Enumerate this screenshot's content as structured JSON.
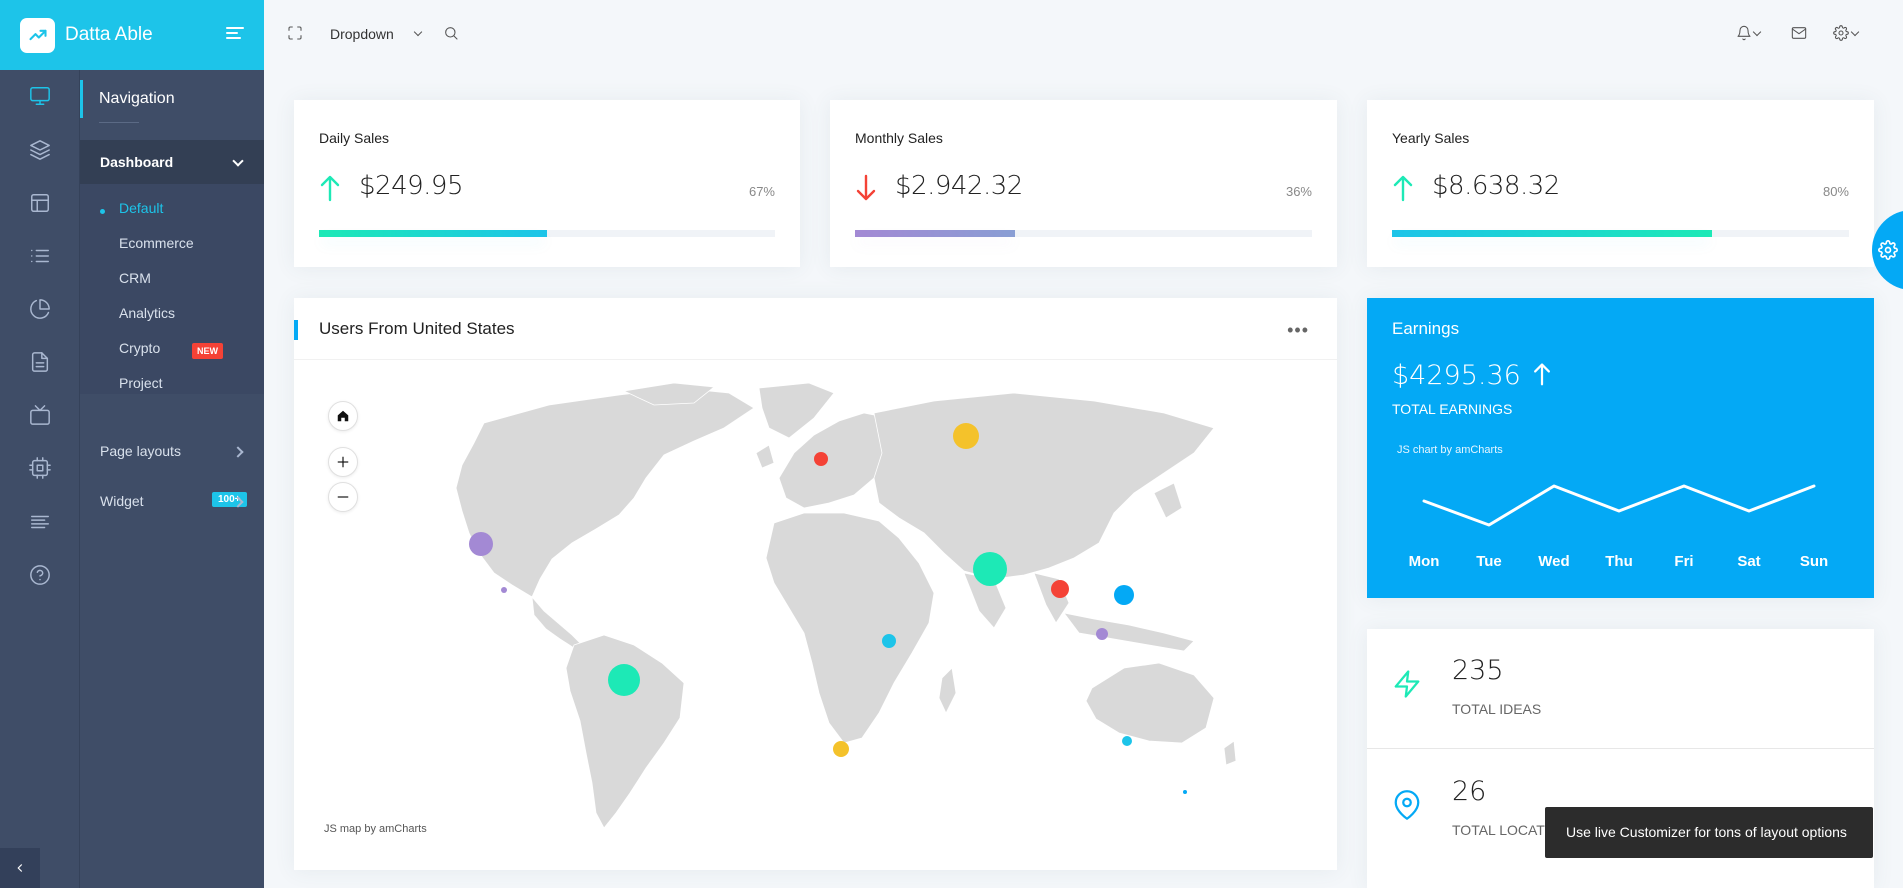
{
  "brand": {
    "name": "Datta Able"
  },
  "sidebar": {
    "heading": "Navigation",
    "group": "Dashboard",
    "sub_items": [
      {
        "label": "Default"
      },
      {
        "label": "Ecommerce"
      },
      {
        "label": "CRM"
      },
      {
        "label": "Analytics"
      },
      {
        "label": "Crypto",
        "badge": "NEW"
      },
      {
        "label": "Project"
      }
    ],
    "page_layouts": "Page layouts",
    "widget": {
      "label": "Widget",
      "badge": "100+"
    },
    "rail_icons": [
      "monitor-icon",
      "layers-icon",
      "layout-icon",
      "list-icon",
      "pie-chart-icon",
      "file-text-icon",
      "tv-icon",
      "cpu-icon",
      "align-left-icon",
      "help-circle-icon"
    ]
  },
  "topbar": {
    "dropdown_label": "Dropdown"
  },
  "stats": [
    {
      "title": "Daily Sales",
      "value": "$249.95",
      "percent": "67%",
      "trend": "up",
      "progress": 0.5
    },
    {
      "title": "Monthly Sales",
      "value": "$2.942.32",
      "percent": "36%",
      "trend": "down",
      "progress": 0.35
    },
    {
      "title": "Yearly Sales",
      "value": "$8.638.32",
      "percent": "80%",
      "trend": "up",
      "progress": 0.7
    }
  ],
  "map_card": {
    "title": "Users From United States",
    "credit": "JS map by amCharts"
  },
  "earnings": {
    "title": "Earnings",
    "value": "$4295.36",
    "subtitle": "TOTAL EARNINGS",
    "credit": "JS chart by amCharts",
    "days": [
      "Mon",
      "Tue",
      "Wed",
      "Thu",
      "Fri",
      "Sat",
      "Sun"
    ]
  },
  "ideas": {
    "value": "235",
    "label": "TOTAL IDEAS"
  },
  "locations": {
    "value": "26",
    "label": "TOTAL LOCATIONS"
  },
  "toast": {
    "text": "Use live Customizer for tons of layout options"
  },
  "colors": {
    "primary": "#04a9f5",
    "cyan": "#1dc4e9",
    "green": "#1de9b6",
    "red": "#f44236",
    "purple": "#a389d4",
    "yellow": "#f4c22b"
  }
}
